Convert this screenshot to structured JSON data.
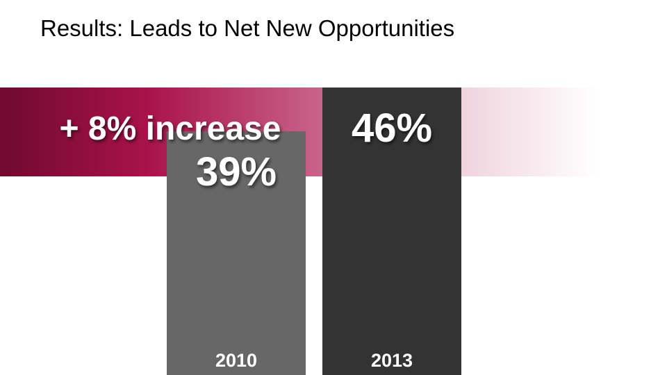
{
  "title": "Results: Leads to Net New Opportunities",
  "highlight": {
    "text": "+ 8% increase",
    "colors": [
      "#6f0a2e",
      "#a8124a",
      "#c9648a",
      "#f0d3de"
    ]
  },
  "chart_data": {
    "type": "bar",
    "title": "Results: Leads to Net New Opportunities",
    "categories": [
      "2010",
      "2013"
    ],
    "values": [
      39,
      46
    ],
    "value_labels": [
      "39%",
      "46%"
    ],
    "bar_colors": [
      "#676767",
      "#333333"
    ],
    "xlabel": "",
    "ylabel": "",
    "grid": false,
    "legend": "none"
  }
}
